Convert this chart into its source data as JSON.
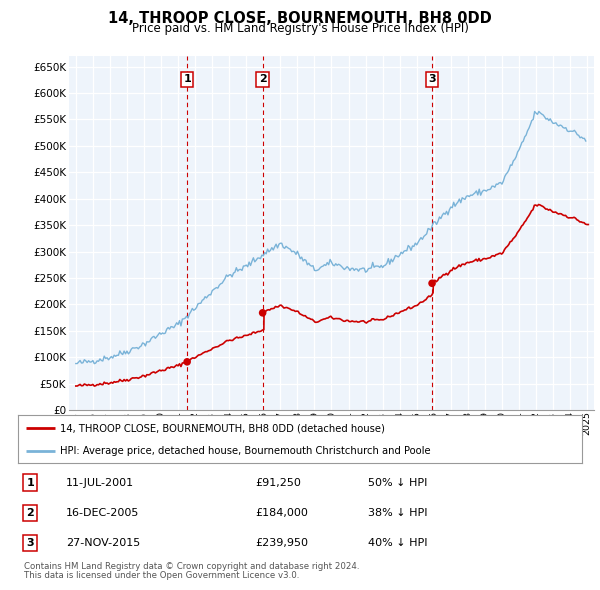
{
  "title": "14, THROOP CLOSE, BOURNEMOUTH, BH8 0DD",
  "subtitle": "Price paid vs. HM Land Registry's House Price Index (HPI)",
  "ytick_values": [
    0,
    50000,
    100000,
    150000,
    200000,
    250000,
    300000,
    350000,
    400000,
    450000,
    500000,
    550000,
    600000,
    650000
  ],
  "ylim": [
    0,
    670000
  ],
  "hpi_color": "#7ab3d8",
  "price_color": "#cc0000",
  "sales": [
    {
      "date": 2001.53,
      "price": 91250,
      "label": "1"
    },
    {
      "date": 2005.96,
      "price": 184000,
      "label": "2"
    },
    {
      "date": 2015.9,
      "price": 239950,
      "label": "3"
    }
  ],
  "table_rows": [
    {
      "num": "1",
      "date": "11-JUL-2001",
      "price": "£91,250",
      "note": "50% ↓ HPI"
    },
    {
      "num": "2",
      "date": "16-DEC-2005",
      "price": "£184,000",
      "note": "38% ↓ HPI"
    },
    {
      "num": "3",
      "date": "27-NOV-2015",
      "price": "£239,950",
      "note": "40% ↓ HPI"
    }
  ],
  "legend_line1": "14, THROOP CLOSE, BOURNEMOUTH, BH8 0DD (detached house)",
  "legend_line2": "HPI: Average price, detached house, Bournemouth Christchurch and Poole",
  "footnote1": "Contains HM Land Registry data © Crown copyright and database right 2024.",
  "footnote2": "This data is licensed under the Open Government Licence v3.0.",
  "background_color": "#ffffff",
  "chart_bg_color": "#eef4fb",
  "grid_color": "#ffffff",
  "vline_color": "#cc0000"
}
